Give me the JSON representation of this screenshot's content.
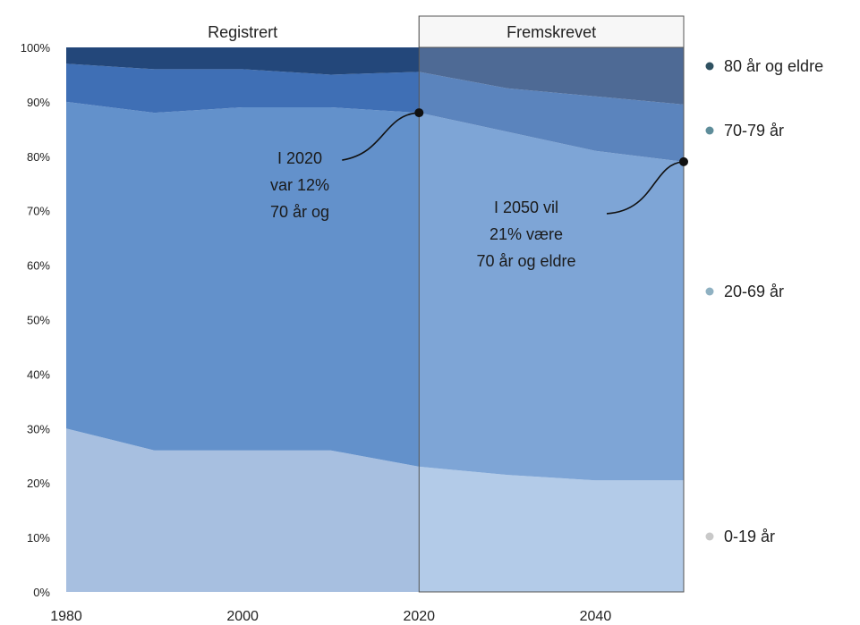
{
  "chart_data": {
    "type": "area",
    "stacked": true,
    "normalized_percent": true,
    "x": [
      1980,
      1990,
      2000,
      2010,
      2020,
      2030,
      2040,
      2050
    ],
    "xticks": [
      1980,
      2000,
      2020,
      2040
    ],
    "yticks": [
      "0%",
      "10%",
      "20%",
      "30%",
      "40%",
      "50%",
      "60%",
      "70%",
      "80%",
      "90%",
      "100%"
    ],
    "ylim": [
      0,
      100
    ],
    "xlim": [
      1980,
      2050
    ],
    "periods": [
      {
        "label": "Registrert",
        "from": 1980,
        "to": 2020
      },
      {
        "label": "Fremskrevet",
        "from": 2020,
        "to": 2050
      }
    ],
    "series": [
      {
        "name": "0-19 år",
        "color_registered": "#a7bfe0",
        "color_projected": "#b3cbe8",
        "values": [
          30,
          26,
          26,
          26,
          23,
          21.5,
          20.5,
          20.5
        ]
      },
      {
        "name": "20-69 år",
        "color_registered": "#6391cb",
        "color_projected": "#7ea5d6",
        "values": [
          60,
          62,
          63,
          63,
          65,
          63,
          60.5,
          58.5
        ]
      },
      {
        "name": "70-79 år",
        "color_registered": "#3f6fb5",
        "color_projected": "#5b84bd",
        "values": [
          7,
          8,
          7,
          6,
          7.5,
          8,
          10,
          10.5
        ]
      },
      {
        "name": "80 år og eldre",
        "color_registered": "#23477a",
        "color_projected": "#4e6a95",
        "values": [
          3,
          4,
          4,
          5,
          4.5,
          7.5,
          9,
          10.5
        ]
      }
    ],
    "legend": [
      {
        "label": "80 år og eldre",
        "color": "#2f5161"
      },
      {
        "label": "70-79 år",
        "color": "#5e8d9a"
      },
      {
        "label": "20-69 år",
        "color": "#8fb1c2"
      },
      {
        "label": "0-19 år",
        "color": "#c9c9c9"
      }
    ],
    "annotations": [
      {
        "x": 2020,
        "y": 88,
        "lines": [
          "I 2020",
          "var 12%",
          "70 år og"
        ]
      },
      {
        "x": 2050,
        "y": 79,
        "lines": [
          "I 2050 vil",
          "21% være",
          "70 år og eldre"
        ]
      }
    ],
    "grid": false,
    "legend_position": "right"
  }
}
